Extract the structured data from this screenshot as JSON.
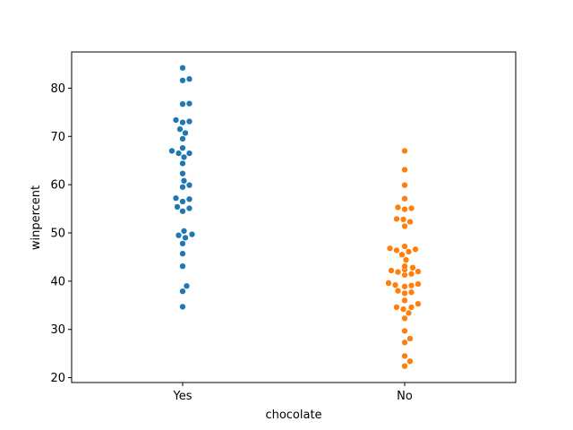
{
  "chart_data": {
    "type": "scatter",
    "subtype": "swarm",
    "title": "",
    "xlabel": "chocolate",
    "ylabel": "winpercent",
    "categories": [
      "Yes",
      "No"
    ],
    "ylim": [
      19,
      87.5
    ],
    "yticks": [
      20,
      30,
      40,
      50,
      60,
      70,
      80
    ],
    "grid": false,
    "legend": "none",
    "series": [
      {
        "category": "Yes",
        "color": "#1f77b4",
        "values": [
          84.2,
          81.9,
          81.6,
          76.8,
          76.7,
          73.4,
          73.1,
          72.9,
          71.5,
          70.7,
          69.5,
          67.6,
          67.0,
          66.5,
          66.5,
          65.7,
          64.4,
          62.3,
          60.8,
          59.9,
          59.5,
          57.2,
          57.0,
          56.5,
          55.4,
          55.1,
          54.5,
          50.4,
          49.7,
          49.5,
          49.0,
          47.8,
          45.7,
          43.1,
          39.0,
          37.9,
          34.7
        ]
      },
      {
        "category": "No",
        "color": "#ff7f0e",
        "values": [
          67.0,
          63.1,
          59.9,
          57.1,
          55.3,
          55.1,
          54.9,
          52.9,
          52.8,
          52.3,
          51.4,
          47.2,
          46.8,
          46.6,
          46.4,
          46.1,
          45.5,
          44.4,
          43.1,
          42.8,
          42.4,
          42.2,
          42.0,
          41.9,
          41.5,
          41.3,
          39.6,
          39.4,
          39.2,
          39.1,
          38.9,
          38.0,
          37.7,
          37.5,
          36.0,
          35.3,
          34.6,
          34.6,
          34.2,
          33.4,
          32.3,
          29.7,
          28.1,
          27.3,
          24.5,
          23.4,
          22.4
        ]
      }
    ]
  }
}
